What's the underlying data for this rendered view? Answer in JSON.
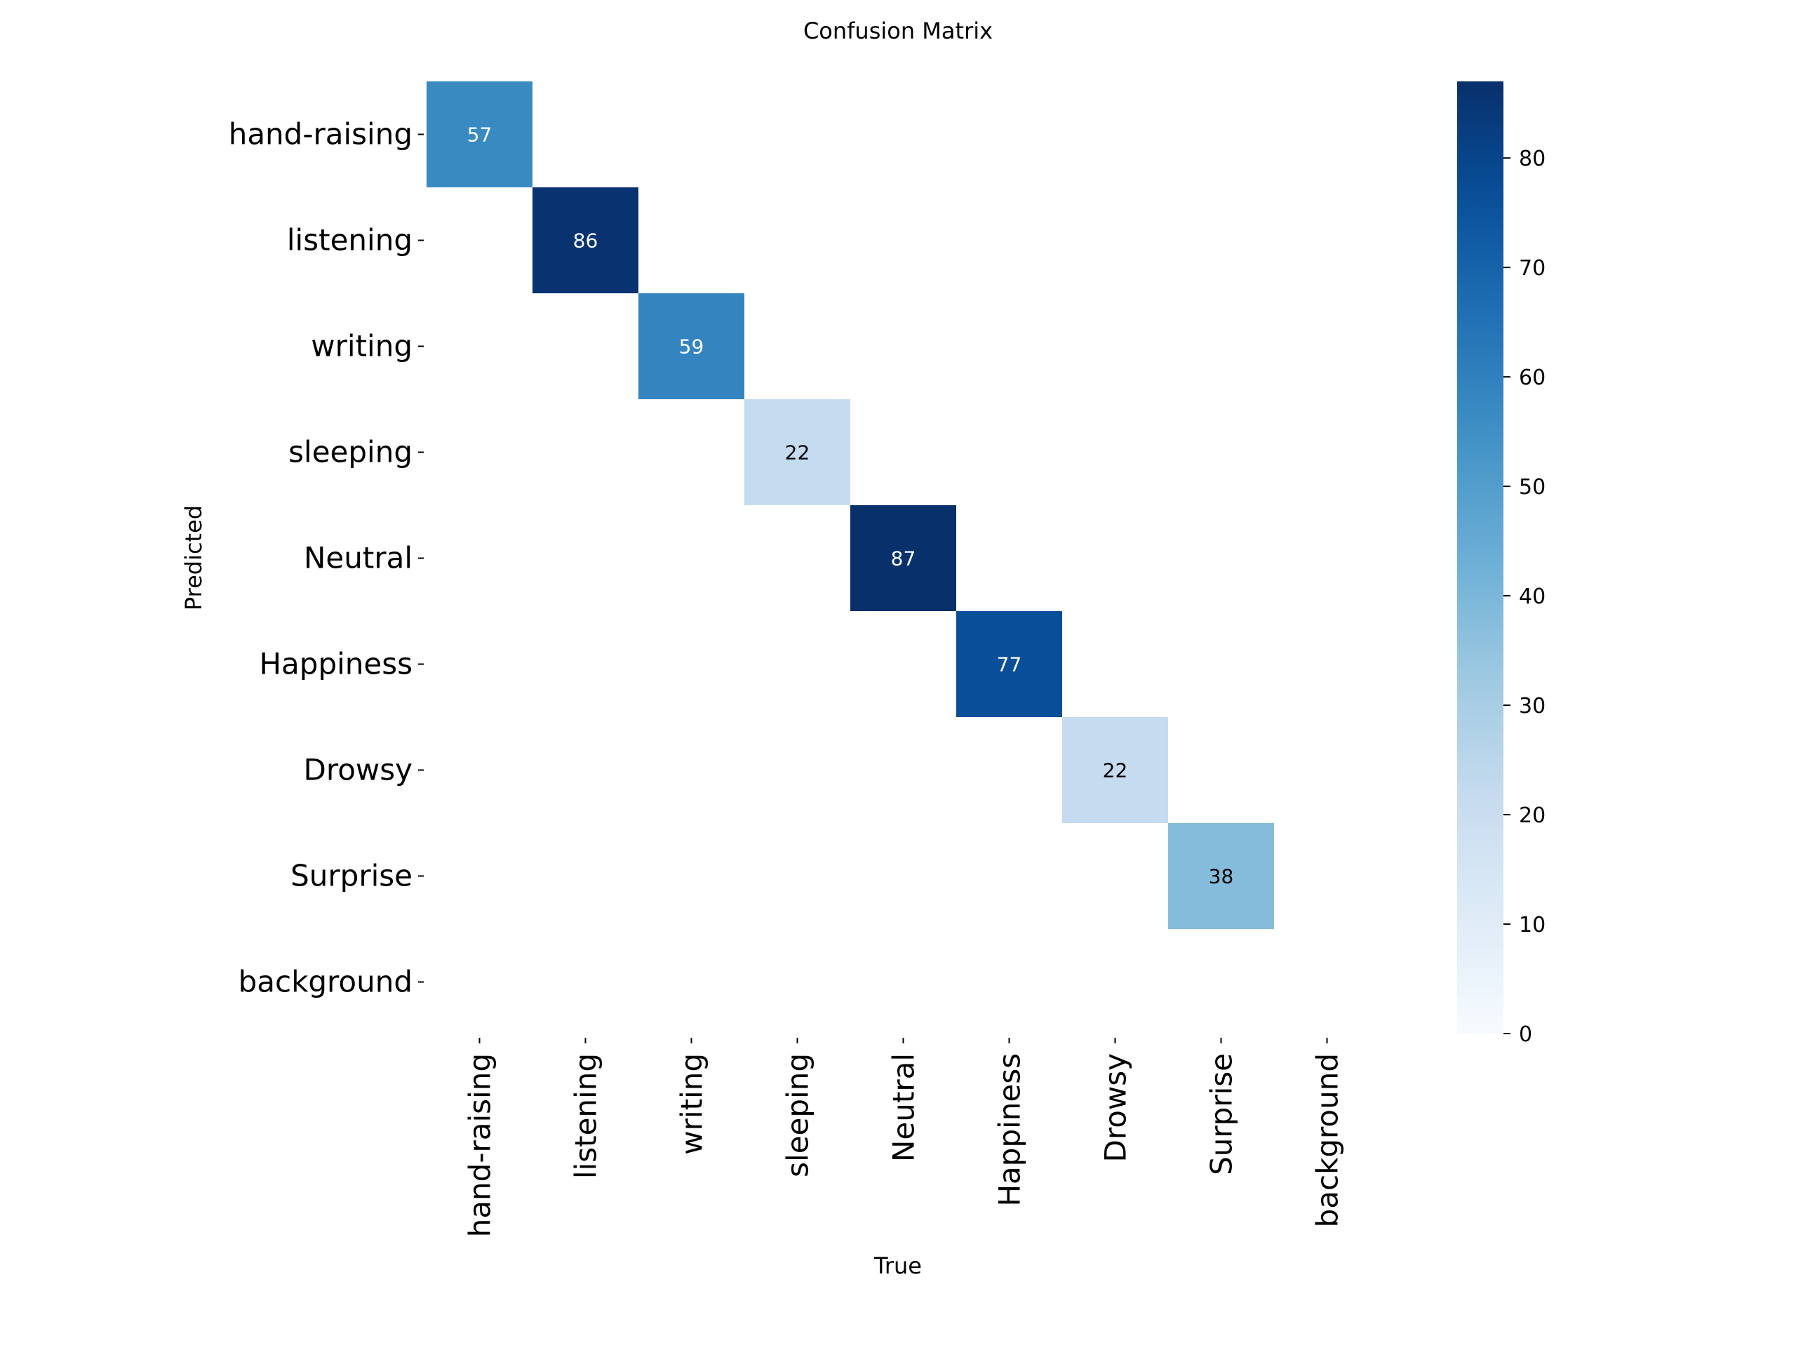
{
  "chart_data": {
    "type": "heatmap",
    "title": "Confusion Matrix",
    "xlabel": "True",
    "ylabel": "Predicted",
    "x_categories": [
      "hand-raising",
      "listening",
      "writing",
      "sleeping",
      "Neutral",
      "Happiness",
      "Drowsy",
      "Surprise",
      "background"
    ],
    "y_categories": [
      "hand-raising",
      "listening",
      "writing",
      "sleeping",
      "Neutral",
      "Happiness",
      "Drowsy",
      "Surprise",
      "background"
    ],
    "cells": [
      {
        "x": "hand-raising",
        "y": "hand-raising",
        "value": 57
      },
      {
        "x": "listening",
        "y": "listening",
        "value": 86
      },
      {
        "x": "writing",
        "y": "writing",
        "value": 59
      },
      {
        "x": "sleeping",
        "y": "sleeping",
        "value": 22
      },
      {
        "x": "Neutral",
        "y": "Neutral",
        "value": 87
      },
      {
        "x": "Happiness",
        "y": "Happiness",
        "value": 77
      },
      {
        "x": "Drowsy",
        "y": "Drowsy",
        "value": 22
      },
      {
        "x": "Surprise",
        "y": "Surprise",
        "value": 38
      }
    ],
    "colorbar": {
      "colormap": "Blues",
      "range": [
        0,
        87
      ],
      "ticks": [
        0,
        10,
        20,
        30,
        40,
        50,
        60,
        70,
        80
      ]
    },
    "empty_cell_color": "#ffffff",
    "grid": false,
    "colorbar_position": "right"
  }
}
